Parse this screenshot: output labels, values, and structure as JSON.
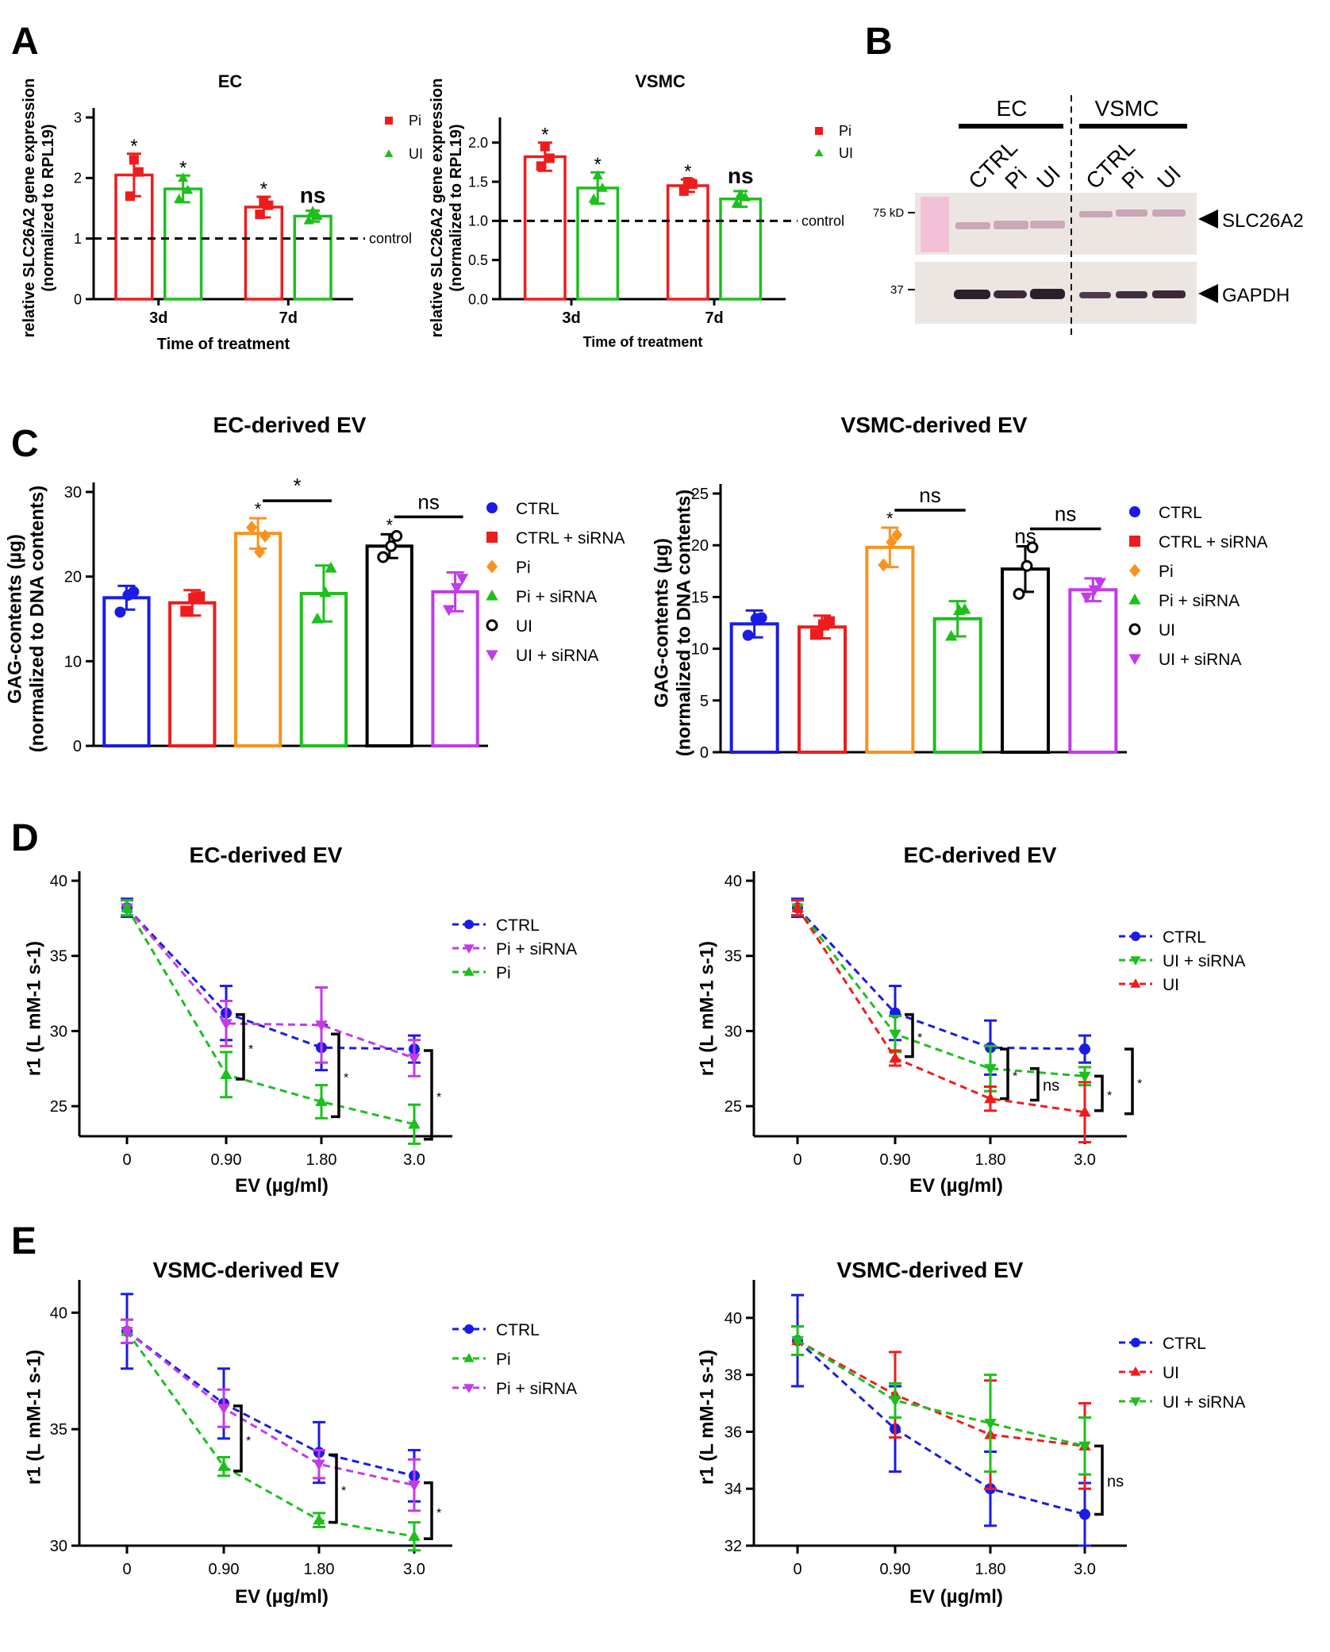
{
  "panel_letters": [
    "A",
    "B",
    "C",
    "D",
    "E"
  ],
  "colors": {
    "red": "#ee1c1c",
    "green": "#1dbf1d",
    "blue": "#1b1be6",
    "orange": "#f7931e",
    "black": "#000000",
    "magenta": "#c13be8"
  },
  "blot": {
    "group_labels": [
      "EC",
      "VSMC"
    ],
    "lane_labels": [
      "CTRL",
      "Pi",
      "UI",
      "CTRL",
      "Pi",
      "UI"
    ],
    "markers": [
      "75 kD",
      "37"
    ],
    "bands": [
      "SLC26A2",
      "GAPDH"
    ]
  },
  "chart_data": [
    {
      "id": "A-EC",
      "type": "bar",
      "title": "EC",
      "xlabel": "Time of treatment",
      "ylabel": [
        "relative SLC26A2 gene expression",
        "(normalized to RPL19)"
      ],
      "categories": [
        "3d",
        "7d"
      ],
      "yticks": [
        "0",
        "1",
        "2",
        "3"
      ],
      "ylim": [
        0,
        3
      ],
      "series": [
        {
          "name": "Pi",
          "color": "#ee1c1c",
          "values": [
            2.05,
            1.52
          ],
          "errors": [
            0.35,
            0.17
          ],
          "points": [
            [
              2.3,
              1.7,
              2.1
            ],
            [
              1.6,
              1.4,
              1.55
            ]
          ],
          "labels": [
            "*",
            "*"
          ]
        },
        {
          "name": "UI",
          "color": "#1dbf1d",
          "values": [
            1.82,
            1.37
          ],
          "errors": [
            0.22,
            0.09
          ],
          "points": [
            [
              2.0,
              1.65,
              1.8
            ],
            [
              1.45,
              1.3,
              1.37
            ]
          ],
          "labels": [
            "*",
            "ns"
          ]
        }
      ],
      "reference": {
        "value": 1.0,
        "label": "control"
      }
    },
    {
      "id": "A-VSMC",
      "type": "bar",
      "title": "VSMC",
      "xlabel": "Time of treatment",
      "ylabel": [
        "relative SLC26A2 gene expression",
        "(normalized to RPL19)"
      ],
      "categories": [
        "3d",
        "7d"
      ],
      "yticks": [
        "0.0",
        "0.5",
        "1.0",
        "1.5",
        "2.0"
      ],
      "ylim": [
        0,
        2.2
      ],
      "series": [
        {
          "name": "Pi",
          "color": "#ee1c1c",
          "values": [
            1.82,
            1.45
          ],
          "errors": [
            0.18,
            0.08
          ],
          "points": [
            [
              1.95,
              1.7,
              1.8
            ],
            [
              1.5,
              1.38,
              1.47
            ]
          ],
          "labels": [
            "*",
            "*"
          ]
        },
        {
          "name": "UI",
          "color": "#1dbf1d",
          "values": [
            1.42,
            1.28
          ],
          "errors": [
            0.2,
            0.1
          ],
          "points": [
            [
              1.58,
              1.28,
              1.42
            ],
            [
              1.34,
              1.22,
              1.3
            ]
          ],
          "labels": [
            "*",
            "ns"
          ]
        }
      ],
      "reference": {
        "value": 1.0,
        "label": "control"
      }
    },
    {
      "id": "C-EC",
      "type": "bar",
      "title": "EC-derived EV",
      "ylabel": [
        "GAG-contents (µg)",
        "(normalized to DNA contents)"
      ],
      "categories": [
        "CTRL",
        "CTRL + siRNA",
        "Pi",
        "Pi + siRNA",
        "UI",
        "UI + siRNA"
      ],
      "yticks": [
        "0",
        "10",
        "20",
        "30"
      ],
      "ylim": [
        0,
        30
      ],
      "values": [
        17.5,
        16.9,
        25.1,
        18.0,
        23.6,
        18.2
      ],
      "errors": [
        1.4,
        1.5,
        1.8,
        3.3,
        1.4,
        2.3
      ],
      "points": [
        [
          18.2,
          15.8,
          17.8
        ],
        [
          17.6,
          15.9,
          17.4
        ],
        [
          24.8,
          25.8,
          22.9
        ],
        [
          21.0,
          15.0,
          18.1
        ],
        [
          24.8,
          22.3,
          23.6
        ],
        [
          19.8,
          16.1,
          18.7
        ]
      ],
      "colors": [
        "#1b1be6",
        "#ee1c1c",
        "#f7931e",
        "#1dbf1d",
        "#000000",
        "#c13be8"
      ],
      "markers": [
        "circle",
        "square",
        "diamond",
        "triangle-up",
        "open-circle",
        "triangle-down"
      ],
      "bar_labels": [
        "",
        "",
        "*",
        "",
        "*",
        ""
      ],
      "comparisons": [
        {
          "from": 2,
          "to": 3,
          "label": "*"
        },
        {
          "from": 4,
          "to": 5,
          "label": "ns"
        }
      ]
    },
    {
      "id": "C-VSMC",
      "type": "bar",
      "title": "VSMC-derived EV",
      "ylabel": [
        "GAG-contents (µg)",
        "(normalized to DNA contents)"
      ],
      "categories": [
        "CTRL",
        "CTRL + siRNA",
        "Pi",
        "Pi + siRNA",
        "UI",
        "UI + siRNA"
      ],
      "yticks": [
        "0",
        "5",
        "10",
        "15",
        "20",
        "25"
      ],
      "ylim": [
        0,
        25
      ],
      "values": [
        12.4,
        12.1,
        19.8,
        12.9,
        17.7,
        15.7
      ],
      "errors": [
        1.3,
        1.1,
        1.9,
        1.7,
        2.2,
        1.1
      ],
      "points": [
        [
          13.0,
          11.3,
          12.9
        ],
        [
          12.6,
          11.4,
          12.3
        ],
        [
          21.0,
          18.1,
          20.3
        ],
        [
          13.8,
          11.2,
          13.7
        ],
        [
          19.8,
          15.3,
          18.0
        ],
        [
          16.4,
          15.0,
          15.7
        ]
      ],
      "colors": [
        "#1b1be6",
        "#ee1c1c",
        "#f7931e",
        "#1dbf1d",
        "#000000",
        "#c13be8"
      ],
      "markers": [
        "circle",
        "square",
        "diamond",
        "triangle-up",
        "open-circle",
        "triangle-down"
      ],
      "bar_labels": [
        "",
        "",
        "*",
        "",
        "ns",
        ""
      ],
      "comparisons": [
        {
          "from": 2,
          "to": 3,
          "label": "ns"
        },
        {
          "from": 4,
          "to": 5,
          "label": "ns"
        }
      ]
    },
    {
      "id": "D-left",
      "type": "line",
      "title": "EC-derived EV",
      "xlabel": "EV (µg/ml)",
      "ylabel": "r1 (L mM-1 s-1)",
      "categories": [
        "0",
        "0.90",
        "1.80",
        "3.0"
      ],
      "yticks": [
        "25",
        "30",
        "35",
        "40"
      ],
      "ylim": [
        23,
        40
      ],
      "series": [
        {
          "name": "CTRL",
          "color": "#1b1be6",
          "marker": "circle",
          "values": [
            38.2,
            31.2,
            28.9,
            28.8
          ],
          "errors": [
            0.6,
            1.8,
            1.5,
            0.9
          ]
        },
        {
          "name": "Pi + siRNA",
          "color": "#c13be8",
          "marker": "triangle-down",
          "values": [
            38.2,
            30.5,
            30.4,
            28.2
          ],
          "errors": [
            0.5,
            1.5,
            2.5,
            1.2
          ]
        },
        {
          "name": "Pi",
          "color": "#1dbf1d",
          "marker": "triangle-up",
          "values": [
            38.2,
            27.1,
            25.3,
            23.8
          ],
          "errors": [
            0.5,
            1.5,
            1.1,
            1.3
          ]
        }
      ],
      "brackets": [
        {
          "category": 1,
          "from": 31.1,
          "to": 26.8,
          "label": "*"
        },
        {
          "category": 2,
          "from": 29.8,
          "to": 24.3,
          "label": "*"
        },
        {
          "category": 3,
          "from": 28.7,
          "to": 22.8,
          "label": "*"
        }
      ]
    },
    {
      "id": "D-right",
      "type": "line",
      "title": "EC-derived EV",
      "xlabel": "EV (µg/ml)",
      "ylabel": "r1 (L mM-1 s-1)",
      "categories": [
        "0",
        "0.90",
        "1.80",
        "3.0"
      ],
      "yticks": [
        "25",
        "30",
        "35",
        "40"
      ],
      "ylim": [
        23,
        40
      ],
      "series": [
        {
          "name": "CTRL",
          "color": "#1b1be6",
          "marker": "circle",
          "values": [
            38.2,
            31.2,
            28.9,
            28.8
          ],
          "errors": [
            0.6,
            1.8,
            1.8,
            0.9
          ]
        },
        {
          "name": "UI + siRNA",
          "color": "#1dbf1d",
          "marker": "triangle-down",
          "values": [
            38.2,
            29.8,
            27.5,
            27.0
          ],
          "errors": [
            0.5,
            1.2,
            1.5,
            0.6
          ]
        },
        {
          "name": "UI",
          "color": "#ee1c1c",
          "marker": "triangle-up",
          "values": [
            38.2,
            28.2,
            25.5,
            24.6
          ],
          "errors": [
            0.5,
            0.5,
            0.8,
            2.0
          ]
        }
      ],
      "brackets": [
        {
          "category": 1,
          "from": 31.1,
          "to": 28.3,
          "label": "*"
        },
        {
          "category": 2,
          "from": 28.8,
          "to": 25.5,
          "label": "*"
        },
        {
          "category": 2,
          "from": 27.5,
          "to": 25.4,
          "label": "ns"
        },
        {
          "category": 3,
          "from": 27.0,
          "to": 24.7,
          "label": "*"
        },
        {
          "category": 3,
          "from": 28.8,
          "to": 24.5,
          "label": "*"
        }
      ]
    },
    {
      "id": "E-left",
      "type": "line",
      "title": "VSMC-derived EV",
      "xlabel": "EV (µg/ml)",
      "ylabel": "r1 (L mM-1 s-1)",
      "categories": [
        "0",
        "0.90",
        "1.80",
        "3.0"
      ],
      "yticks": [
        "30",
        "35",
        "40"
      ],
      "ylim": [
        30,
        41
      ],
      "series": [
        {
          "name": "CTRL",
          "color": "#1b1be6",
          "marker": "circle",
          "values": [
            39.2,
            36.1,
            34.0,
            33.0
          ],
          "errors": [
            1.6,
            1.5,
            1.3,
            1.1
          ]
        },
        {
          "name": "Pi",
          "color": "#1dbf1d",
          "marker": "triangle-up",
          "values": [
            39.2,
            33.4,
            31.1,
            30.4
          ],
          "errors": [
            0.5,
            0.4,
            0.3,
            0.6
          ]
        },
        {
          "name": "Pi + siRNA",
          "color": "#c13be8",
          "marker": "triangle-down",
          "values": [
            39.2,
            35.9,
            33.5,
            32.6
          ],
          "errors": [
            0.5,
            0.8,
            0.6,
            1.1
          ]
        }
      ],
      "brackets": [
        {
          "category": 1,
          "from": 36.0,
          "to": 33.2,
          "label": "*"
        },
        {
          "category": 2,
          "from": 33.9,
          "to": 31.0,
          "label": "*"
        },
        {
          "category": 3,
          "from": 32.7,
          "to": 30.3,
          "label": "*"
        }
      ]
    },
    {
      "id": "E-right",
      "type": "line",
      "title": "VSMC-derived EV",
      "xlabel": "EV (µg/ml)",
      "ylabel": "r1 (L mM-1 s-1)",
      "categories": [
        "0",
        "0.90",
        "1.80",
        "3.0"
      ],
      "yticks": [
        "32",
        "34",
        "36",
        "38",
        "40"
      ],
      "ylim": [
        32,
        41
      ],
      "series": [
        {
          "name": "CTRL",
          "color": "#1b1be6",
          "marker": "circle",
          "values": [
            39.2,
            36.1,
            34.0,
            33.1
          ],
          "errors": [
            1.6,
            1.5,
            1.3,
            1.1
          ]
        },
        {
          "name": "UI",
          "color": "#ee1c1c",
          "marker": "triangle-up",
          "values": [
            39.2,
            37.3,
            35.9,
            35.5
          ],
          "errors": [
            0.5,
            1.5,
            1.9,
            1.5
          ]
        },
        {
          "name": "UI + siRNA",
          "color": "#1dbf1d",
          "marker": "triangle-down",
          "values": [
            39.2,
            37.1,
            36.3,
            35.5
          ],
          "errors": [
            0.5,
            0.6,
            1.7,
            1.0
          ]
        }
      ],
      "brackets": [
        {
          "category": 3,
          "from": 35.5,
          "to": 33.1,
          "label": "ns"
        }
      ]
    }
  ]
}
